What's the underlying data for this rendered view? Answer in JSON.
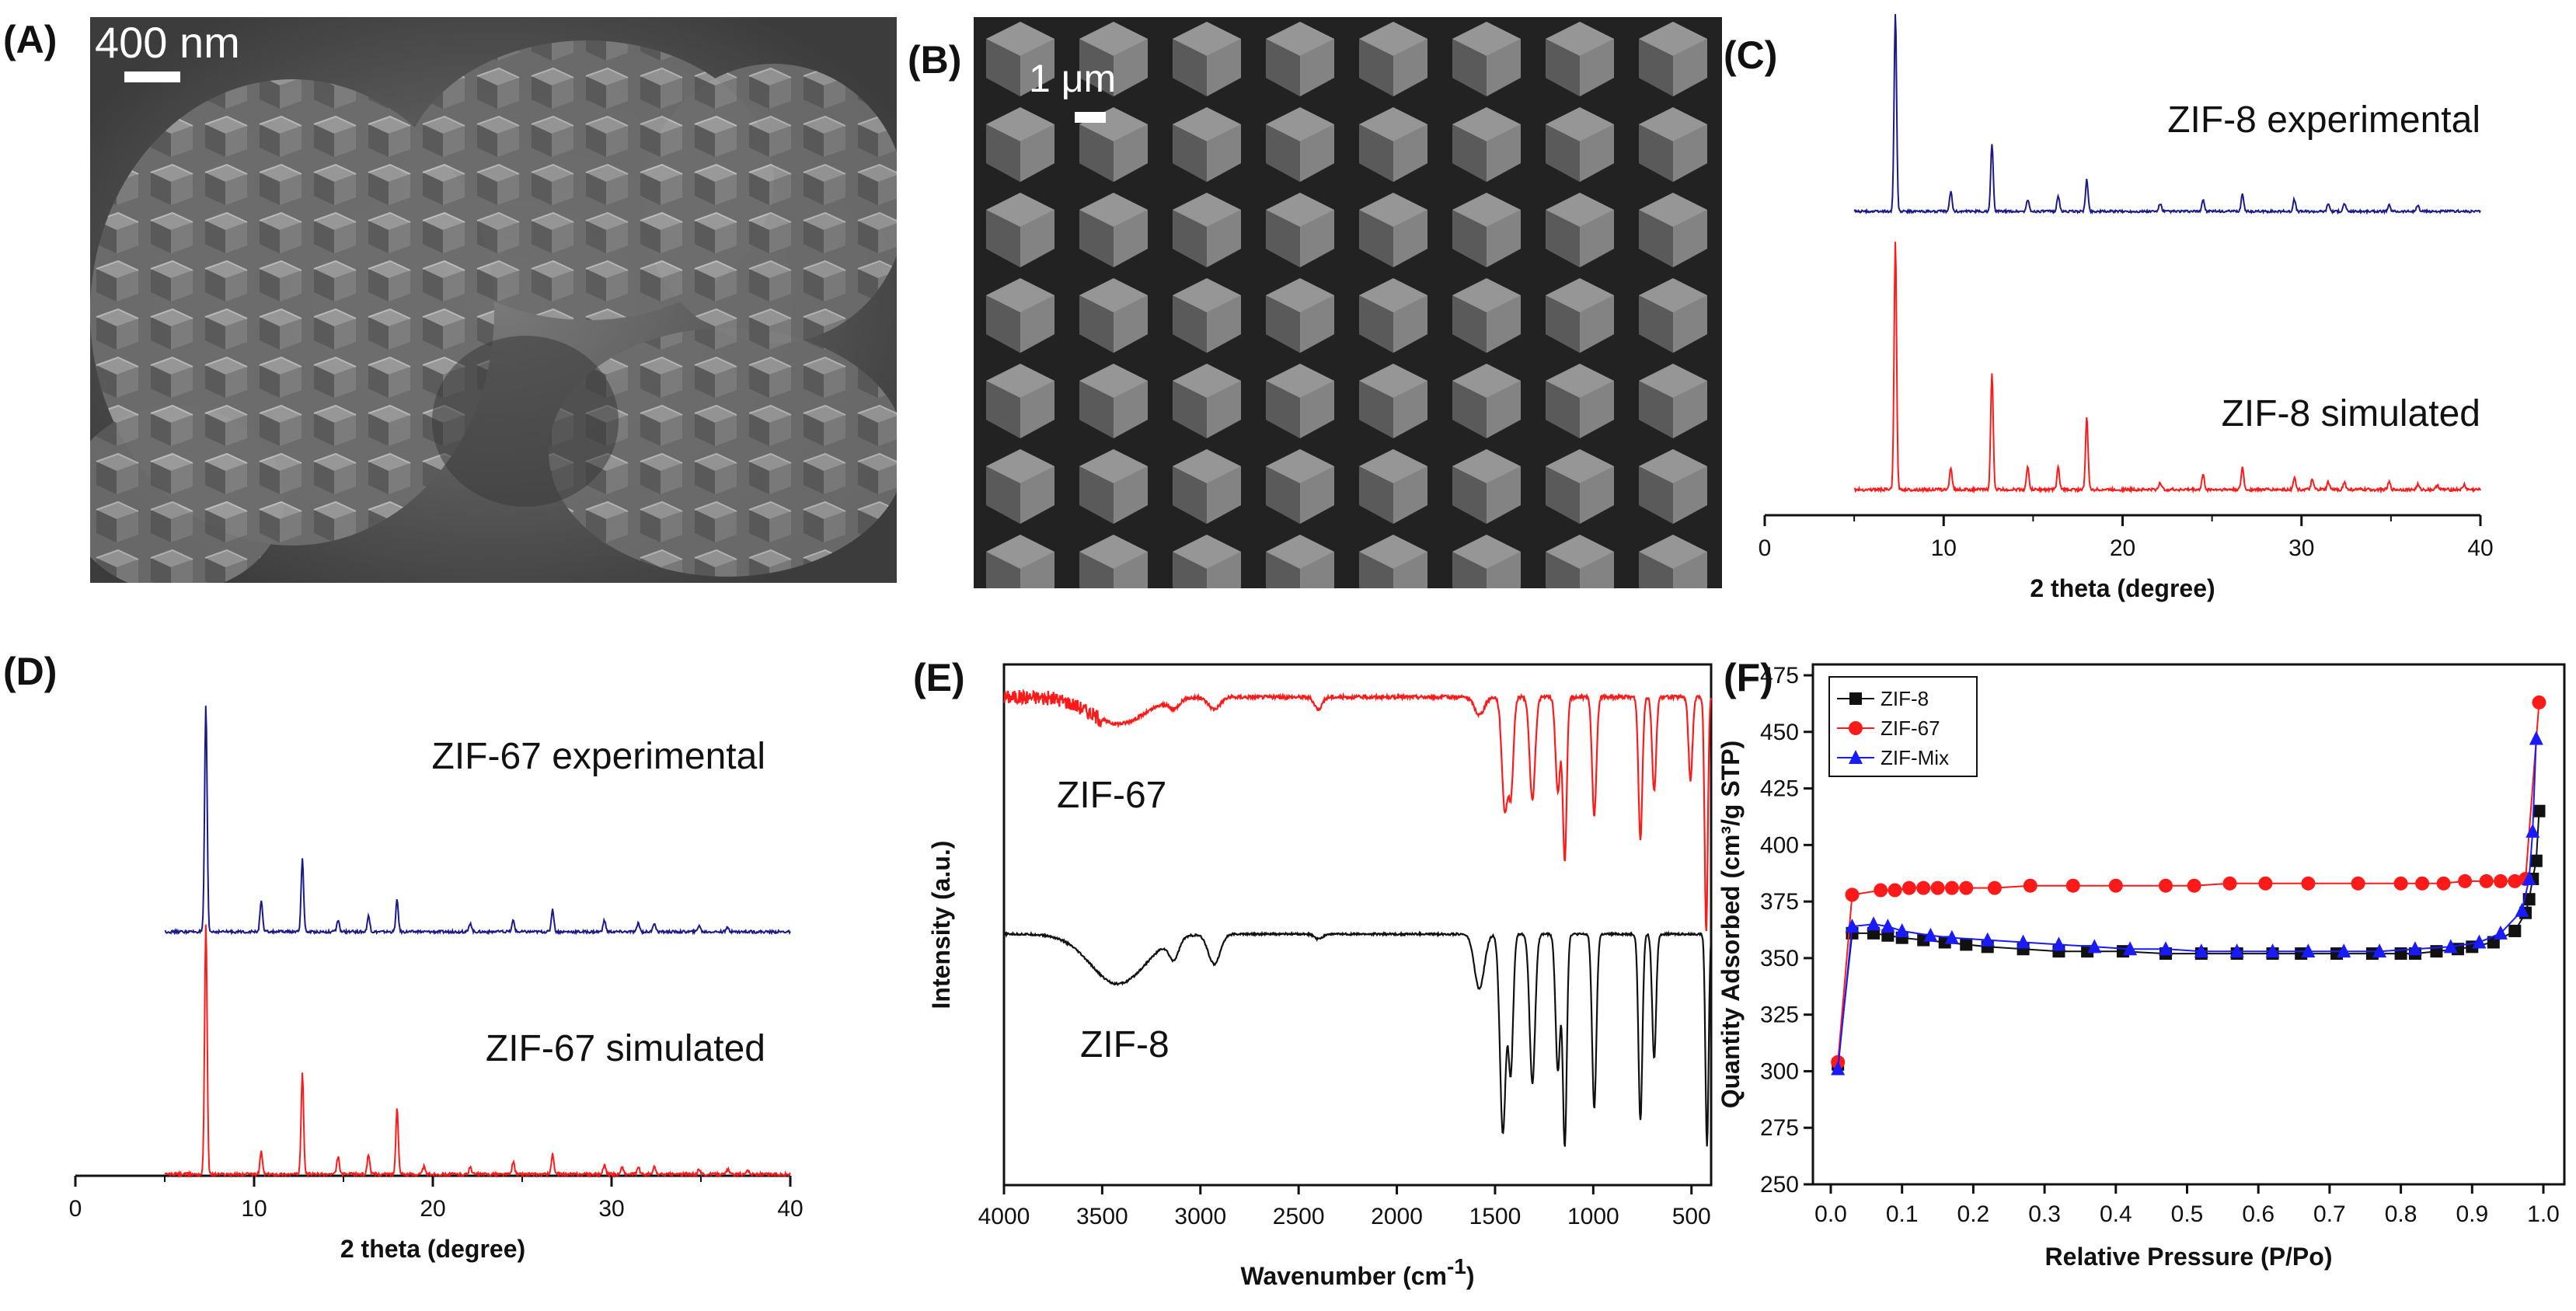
{
  "panels": {
    "A": {
      "letter": "(A)",
      "scale_label": "400 nm"
    },
    "B": {
      "letter": "(B)",
      "scale_label": "1 μm"
    },
    "C": {
      "letter": "(C)"
    },
    "D": {
      "letter": "(D)"
    },
    "E": {
      "letter": "(E)"
    },
    "F": {
      "letter": "(F)"
    }
  },
  "colors": {
    "experimental": "#1a1a8c",
    "simulated": "#ff1a1a",
    "zif8_ir": "#111111",
    "zif67_ir": "#ff1a1a",
    "zif8_bet": "#111111",
    "zif67_bet": "#ff1a1a",
    "mix_bet": "#1a1aff"
  },
  "chart_data": [
    {
      "id": "C",
      "type": "line",
      "title": "",
      "xlabel": "2 theta (degree)",
      "ylabel": "",
      "xlim": [
        0,
        40
      ],
      "xticks": [
        0,
        10,
        20,
        30,
        40
      ],
      "series": [
        {
          "name": "ZIF-8 experimental",
          "color": "#1a1a8c",
          "peaks": [
            [
              7.3,
              100
            ],
            [
              10.4,
              10
            ],
            [
              12.7,
              34
            ],
            [
              14.7,
              6
            ],
            [
              16.4,
              8
            ],
            [
              18.0,
              16
            ],
            [
              22.1,
              4
            ],
            [
              24.5,
              6
            ],
            [
              26.7,
              9
            ],
            [
              29.6,
              6
            ],
            [
              31.5,
              4
            ],
            [
              32.4,
              4
            ],
            [
              34.9,
              3
            ],
            [
              36.5,
              3
            ]
          ]
        },
        {
          "name": "ZIF-8 simulated",
          "color": "#ff1a1a",
          "peaks": [
            [
              7.3,
              100
            ],
            [
              10.4,
              9
            ],
            [
              12.7,
              47
            ],
            [
              14.7,
              9
            ],
            [
              16.4,
              9
            ],
            [
              18.0,
              29
            ],
            [
              22.1,
              3
            ],
            [
              24.5,
              6
            ],
            [
              26.7,
              9
            ],
            [
              29.6,
              5
            ],
            [
              30.6,
              4
            ],
            [
              31.5,
              3
            ],
            [
              32.4,
              3
            ],
            [
              34.9,
              3
            ],
            [
              36.5,
              2
            ],
            [
              37.6,
              2
            ],
            [
              39.1,
              2
            ]
          ]
        }
      ]
    },
    {
      "id": "D",
      "type": "line",
      "title": "",
      "xlabel": "2 theta (degree)",
      "ylabel": "",
      "xlim": [
        0,
        40
      ],
      "xticks": [
        0,
        10,
        20,
        30,
        40
      ],
      "series": [
        {
          "name": "ZIF-67 experimental",
          "color": "#1a1a8c",
          "peaks": [
            [
              7.3,
              100
            ],
            [
              10.4,
              14
            ],
            [
              12.7,
              32
            ],
            [
              14.7,
              5
            ],
            [
              16.4,
              7
            ],
            [
              18.0,
              14
            ],
            [
              22.1,
              4
            ],
            [
              24.5,
              5
            ],
            [
              26.7,
              10
            ],
            [
              29.6,
              5
            ],
            [
              31.5,
              4
            ],
            [
              32.4,
              4
            ],
            [
              34.9,
              3
            ],
            [
              36.5,
              2
            ]
          ]
        },
        {
          "name": "ZIF-67 simulated",
          "color": "#ff1a1a",
          "peaks": [
            [
              7.3,
              100
            ],
            [
              10.4,
              9
            ],
            [
              12.7,
              40
            ],
            [
              14.7,
              7
            ],
            [
              16.4,
              8
            ],
            [
              18.0,
              26
            ],
            [
              19.5,
              3
            ],
            [
              22.1,
              3
            ],
            [
              24.5,
              5
            ],
            [
              26.7,
              8
            ],
            [
              29.6,
              4
            ],
            [
              30.6,
              3
            ],
            [
              31.5,
              3
            ],
            [
              32.4,
              3
            ],
            [
              34.9,
              2
            ],
            [
              36.5,
              2
            ],
            [
              37.6,
              2
            ]
          ]
        }
      ]
    },
    {
      "id": "E",
      "type": "line",
      "title": "",
      "xlabel": "Wavenumber (cm",
      "xlabel_sup": "-1",
      "xlabel_close": ")",
      "ylabel": "Intensity (a.u.)",
      "xlim": [
        4000,
        400
      ],
      "xticks": [
        4000,
        3500,
        3000,
        2500,
        2000,
        1500,
        1000,
        500
      ],
      "series": [
        {
          "name": "ZIF-67",
          "color": "#ff1a1a",
          "baseline": 0.96,
          "bands": [
            [
              3420,
              0.09,
              140
            ],
            [
              3135,
              0.03,
              25
            ],
            [
              2930,
              0.04,
              30
            ],
            [
              2400,
              0.04,
              20
            ],
            [
              1580,
              0.06,
              25
            ],
            [
              1450,
              0.38,
              15
            ],
            [
              1418,
              0.3,
              12
            ],
            [
              1310,
              0.35,
              14
            ],
            [
              1180,
              0.32,
              12
            ],
            [
              1145,
              0.55,
              10
            ],
            [
              995,
              0.4,
              11
            ],
            [
              760,
              0.48,
              10
            ],
            [
              690,
              0.32,
              10
            ],
            [
              505,
              0.28,
              10
            ],
            [
              425,
              0.8,
              8
            ]
          ]
        },
        {
          "name": "ZIF-8",
          "color": "#111111",
          "baseline": 0.96,
          "bands": [
            [
              3420,
              0.2,
              140
            ],
            [
              3135,
              0.08,
              25
            ],
            [
              2930,
              0.12,
              30
            ],
            [
              2400,
              0.02,
              20
            ],
            [
              1580,
              0.22,
              25
            ],
            [
              1460,
              0.8,
              15
            ],
            [
              1420,
              0.55,
              12
            ],
            [
              1310,
              0.6,
              14
            ],
            [
              1180,
              0.55,
              12
            ],
            [
              1145,
              0.85,
              10
            ],
            [
              995,
              0.7,
              11
            ],
            [
              760,
              0.75,
              10
            ],
            [
              690,
              0.5,
              10
            ],
            [
              421,
              0.85,
              8
            ]
          ]
        }
      ]
    },
    {
      "id": "F",
      "type": "line",
      "title": "",
      "xlabel": "Relative Pressure (P/Po)",
      "ylabel": "Quantity Adsorbed (cm³/g STP)",
      "xlim": [
        0.0,
        1.0
      ],
      "ylim": [
        250,
        475
      ],
      "xticks": [
        0.0,
        0.1,
        0.2,
        0.3,
        0.4,
        0.5,
        0.6,
        0.7,
        0.8,
        0.9,
        1.0
      ],
      "xtick_labels": [
        "0.0",
        "0.1",
        "0.2",
        "0.3",
        "0.4",
        "0.5",
        "0.6",
        "0.7",
        "0.8",
        "0.9",
        "1.0"
      ],
      "yticks": [
        250,
        275,
        300,
        325,
        350,
        375,
        400,
        425,
        450,
        475
      ],
      "legend_position": "top-left",
      "series": [
        {
          "name": "ZIF-8",
          "marker": "square",
          "color": "#111111",
          "x": [
            0.01,
            0.03,
            0.06,
            0.08,
            0.1,
            0.13,
            0.16,
            0.19,
            0.22,
            0.27,
            0.32,
            0.36,
            0.41,
            0.47,
            0.52,
            0.57,
            0.62,
            0.66,
            0.71,
            0.76,
            0.8,
            0.82,
            0.85,
            0.88,
            0.9,
            0.93,
            0.96,
            0.975,
            0.98,
            0.985,
            0.99,
            0.994
          ],
          "y": [
            303,
            361,
            361,
            360,
            359,
            358,
            357,
            356,
            355,
            354,
            353,
            353,
            353,
            352,
            352,
            352,
            352,
            352,
            352,
            352,
            352,
            352,
            353,
            354,
            355,
            357,
            362,
            370,
            376,
            385,
            393,
            415
          ]
        },
        {
          "name": "ZIF-67",
          "marker": "circle",
          "color": "#ff1a1a",
          "x": [
            0.01,
            0.03,
            0.07,
            0.09,
            0.11,
            0.13,
            0.15,
            0.17,
            0.19,
            0.23,
            0.28,
            0.34,
            0.4,
            0.47,
            0.51,
            0.56,
            0.61,
            0.67,
            0.74,
            0.8,
            0.83,
            0.86,
            0.89,
            0.92,
            0.94,
            0.96,
            0.975,
            0.994
          ],
          "y": [
            304,
            378,
            380,
            380,
            381,
            381,
            381,
            381,
            381,
            381,
            382,
            382,
            382,
            382,
            382,
            383,
            383,
            383,
            383,
            383,
            383,
            383,
            384,
            384,
            384,
            384,
            385,
            463
          ]
        },
        {
          "name": "ZIF-Mix",
          "marker": "triangle",
          "color": "#1a1aff",
          "x": [
            0.01,
            0.03,
            0.06,
            0.08,
            0.1,
            0.14,
            0.17,
            0.22,
            0.27,
            0.32,
            0.37,
            0.42,
            0.47,
            0.52,
            0.57,
            0.62,
            0.67,
            0.72,
            0.77,
            0.82,
            0.87,
            0.91,
            0.94,
            0.97,
            0.98,
            0.985,
            0.99
          ],
          "y": [
            301,
            364,
            365,
            364,
            362,
            360,
            359,
            358,
            357,
            356,
            355,
            354,
            354,
            353,
            353,
            353,
            353,
            353,
            353,
            354,
            355,
            357,
            361,
            371,
            385,
            406,
            447
          ]
        }
      ]
    }
  ]
}
